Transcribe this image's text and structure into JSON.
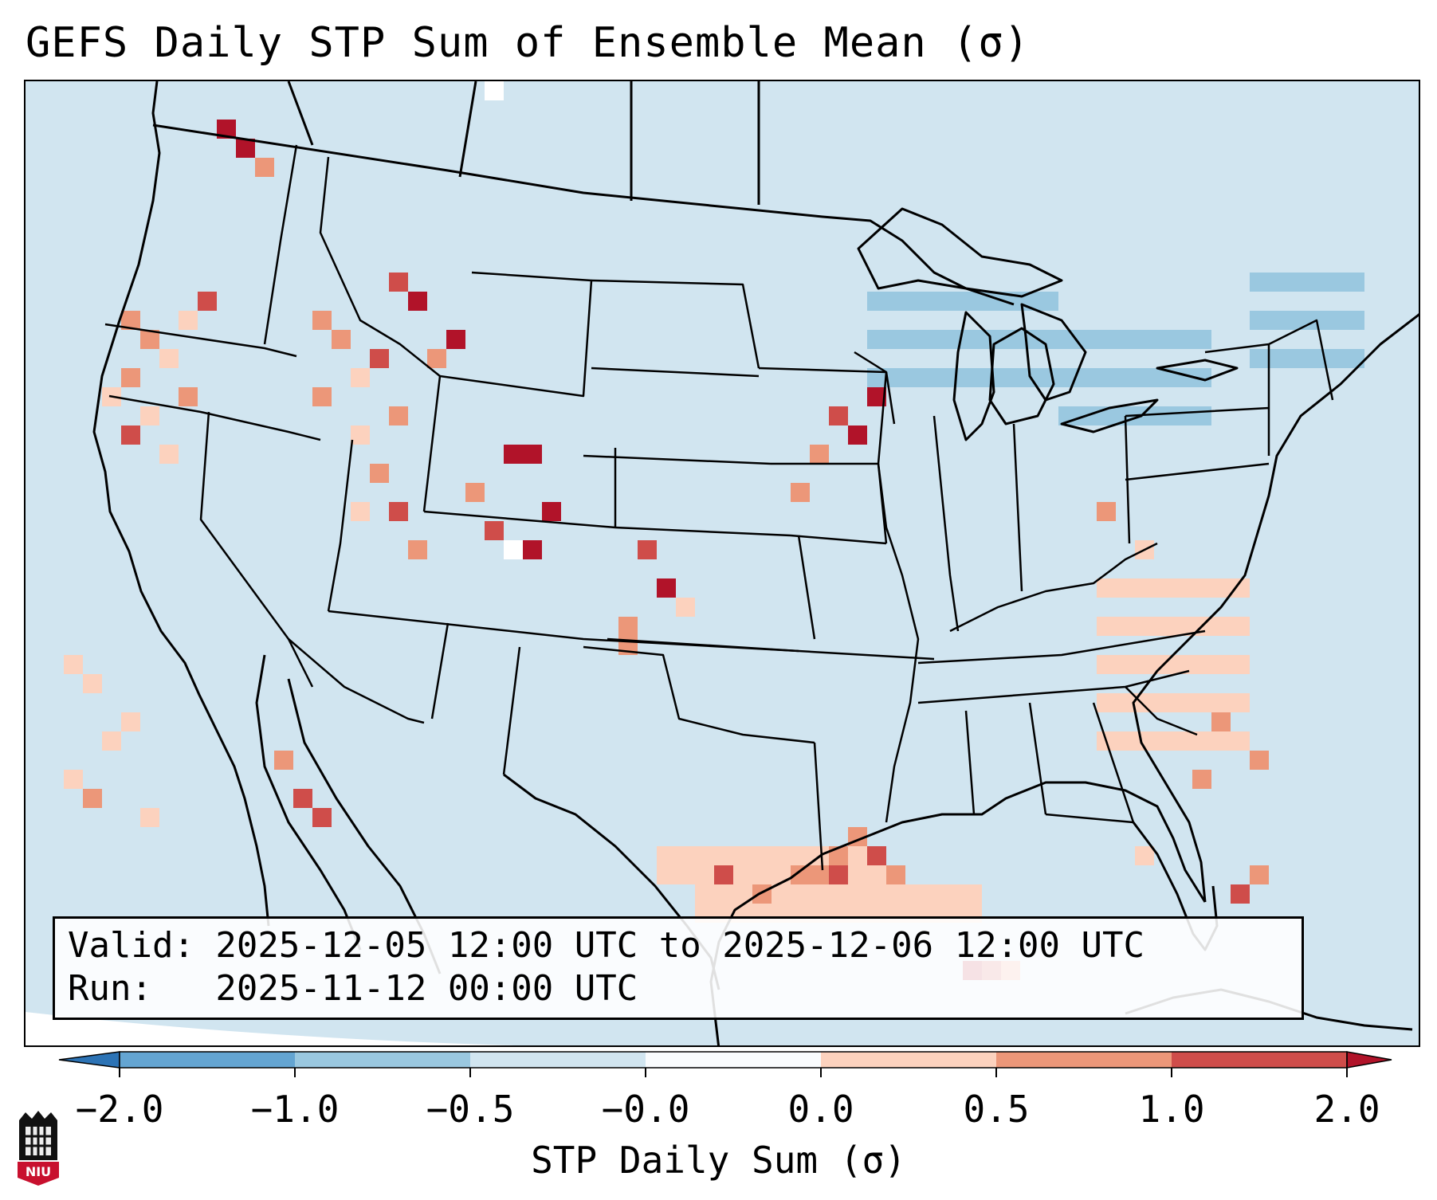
{
  "title": "GEFS Daily STP Sum of Ensemble Mean (σ)",
  "info": {
    "valid_line": "Valid: 2025-12-05 12:00 UTC to 2025-12-06 12:00 UTC",
    "run_line": "Run:   2025-11-12 00:00 UTC"
  },
  "colorbar": {
    "label": "STP Daily Sum (σ)",
    "ticks": [
      "−2.0",
      "−1.0",
      "−0.5",
      "−0.0",
      "0.0",
      "0.5",
      "1.0",
      "2.0"
    ],
    "colors": [
      "#2c73b5",
      "#64a5d2",
      "#9ac8e0",
      "#d1e5f0",
      "#f9fbfd",
      "#fcd2be",
      "#ec9779",
      "#cf4d4a",
      "#b11329"
    ],
    "extend": "both"
  },
  "map": {
    "background_color": "#d1e5f0",
    "category_colors": {
      "light_blue": "#9ac8e0",
      "light_salmon": "#fcd2be",
      "salmon": "#ec9779",
      "red": "#cf4d4a",
      "dark_red": "#b11329",
      "white": "#ffffff"
    }
  },
  "logo": {
    "text": "NIU",
    "color": "#c8102e"
  }
}
